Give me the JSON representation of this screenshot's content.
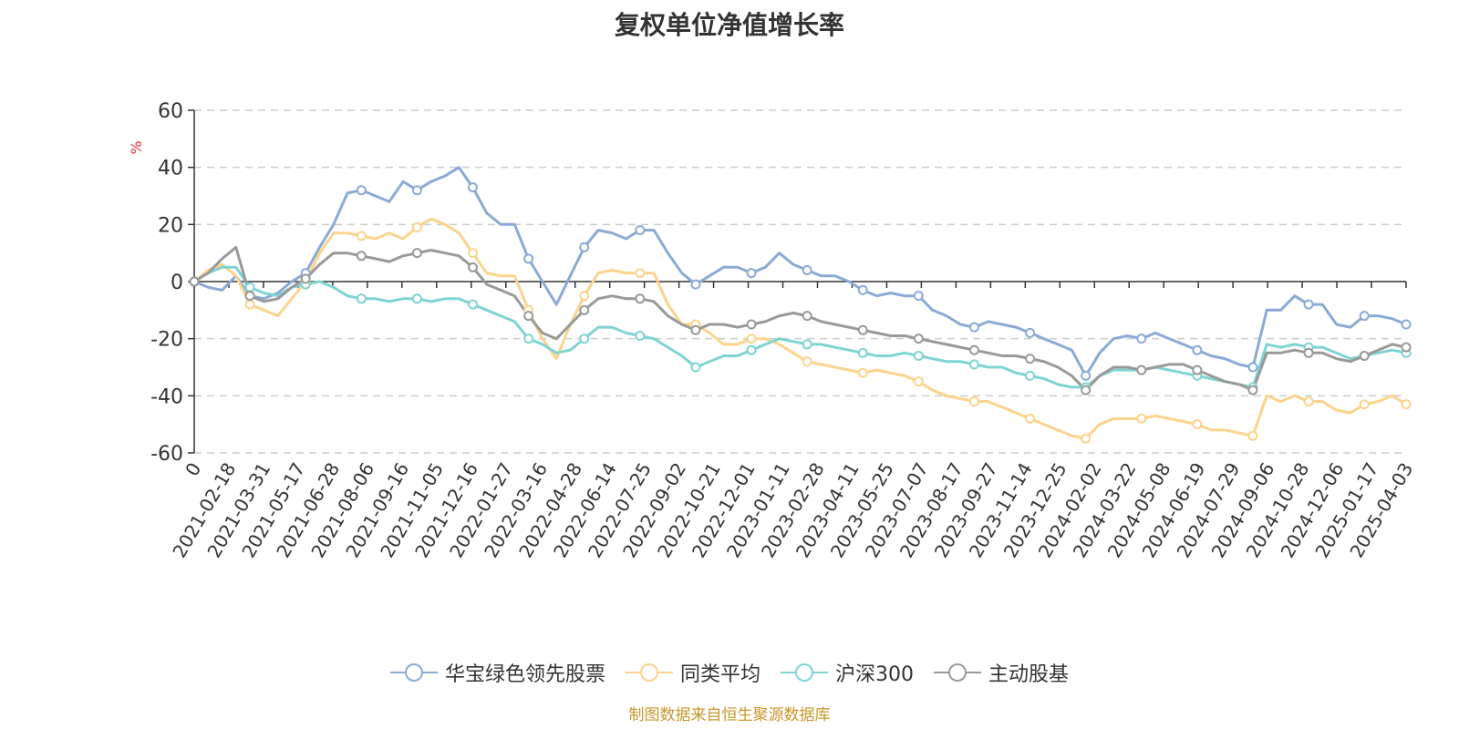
{
  "chart_data": {
    "type": "line",
    "title": "复权单位净值增长率",
    "ylabel": "%",
    "ylim": [
      -60,
      60
    ],
    "yticks": [
      60,
      40,
      20,
      0,
      -20,
      -40,
      -60
    ],
    "grid": true,
    "legend_position": "bottom",
    "x_tick_labels": [
      "0",
      "2021-02-18",
      "2021-03-31",
      "2021-05-17",
      "2021-06-28",
      "2021-08-06",
      "2021-09-16",
      "2021-11-05",
      "2021-12-16",
      "2022-01-27",
      "2022-03-16",
      "2022-04-28",
      "2022-06-14",
      "2022-07-25",
      "2022-09-02",
      "2022-10-21",
      "2022-12-01",
      "2023-01-11",
      "2023-02-28",
      "2023-04-11",
      "2023-05-25",
      "2023-07-07",
      "2023-08-17",
      "2023-09-27",
      "2023-11-14",
      "2023-12-25",
      "2024-02-02",
      "2024-03-22",
      "2024-05-08",
      "2024-06-19",
      "2024-07-29",
      "2024-09-06",
      "2024-10-28",
      "2024-12-06",
      "2025-01-17",
      "2025-04-03"
    ],
    "series": [
      {
        "name": "华宝绿色领先股票",
        "color": "#8aaad6",
        "values": [
          0,
          -2,
          -3,
          2,
          -5,
          -6,
          -4,
          0,
          3,
          12,
          20,
          31,
          32,
          30,
          28,
          35,
          32,
          35,
          37,
          40,
          33,
          24,
          20,
          20,
          8,
          0,
          -8,
          2,
          12,
          18,
          17,
          15,
          18,
          18,
          10,
          3,
          -1,
          2,
          5,
          5,
          3,
          5,
          10,
          6,
          4,
          2,
          2,
          0,
          -3,
          -5,
          -4,
          -5,
          -5,
          -10,
          -12,
          -15,
          -16,
          -14,
          -15,
          -16,
          -18,
          -20,
          -22,
          -24,
          -33,
          -25,
          -20,
          -19,
          -20,
          -18,
          -20,
          -22,
          -24,
          -26,
          -27,
          -29,
          -30,
          -10,
          -10,
          -5,
          -8,
          -8,
          -15,
          -16,
          -12,
          -12,
          -13,
          -15
        ]
      },
      {
        "name": "同类平均",
        "color": "#fbd38c",
        "values": [
          0,
          4,
          6,
          2,
          -8,
          -10,
          -12,
          -6,
          0,
          10,
          17,
          17,
          16,
          15,
          17,
          15,
          19,
          22,
          20,
          17,
          10,
          3,
          2,
          2,
          -10,
          -20,
          -27,
          -15,
          -5,
          3,
          4,
          3,
          3,
          3,
          -8,
          -15,
          -15,
          -18,
          -22,
          -22,
          -20,
          -20,
          -22,
          -25,
          -28,
          -29,
          -30,
          -31,
          -32,
          -31,
          -32,
          -33,
          -35,
          -38,
          -40,
          -41,
          -42,
          -42,
          -44,
          -46,
          -48,
          -50,
          -52,
          -54,
          -55,
          -50,
          -48,
          -48,
          -48,
          -47,
          -48,
          -49,
          -50,
          -52,
          -52,
          -53,
          -54,
          -40,
          -42,
          -40,
          -42,
          -42,
          -45,
          -46,
          -43,
          -42,
          -40,
          -43
        ]
      },
      {
        "name": "沪深300",
        "color": "#7fd3d3",
        "values": [
          0,
          3,
          5,
          5,
          -2,
          -4,
          -5,
          -2,
          -1,
          0,
          -2,
          -5,
          -6,
          -6,
          -7,
          -6,
          -6,
          -7,
          -6,
          -6,
          -8,
          -10,
          -12,
          -14,
          -20,
          -22,
          -25,
          -24,
          -20,
          -16,
          -16,
          -18,
          -19,
          -20,
          -23,
          -26,
          -30,
          -28,
          -26,
          -26,
          -24,
          -22,
          -20,
          -21,
          -22,
          -22,
          -23,
          -24,
          -25,
          -26,
          -26,
          -25,
          -26,
          -27,
          -28,
          -28,
          -29,
          -30,
          -30,
          -32,
          -33,
          -34,
          -36,
          -37,
          -37,
          -33,
          -31,
          -31,
          -31,
          -30,
          -31,
          -32,
          -33,
          -34,
          -35,
          -36,
          -37,
          -22,
          -23,
          -22,
          -23,
          -23,
          -25,
          -27,
          -26,
          -25,
          -24,
          -25
        ]
      },
      {
        "name": "主动股基",
        "color": "#999999",
        "values": [
          0,
          3,
          8,
          12,
          -5,
          -7,
          -6,
          -2,
          1,
          6,
          10,
          10,
          9,
          8,
          7,
          9,
          10,
          11,
          10,
          9,
          5,
          -1,
          -3,
          -5,
          -12,
          -18,
          -20,
          -15,
          -10,
          -6,
          -5,
          -6,
          -6,
          -7,
          -12,
          -15,
          -17,
          -15,
          -15,
          -16,
          -15,
          -14,
          -12,
          -11,
          -12,
          -14,
          -15,
          -16,
          -17,
          -18,
          -19,
          -19,
          -20,
          -21,
          -22,
          -23,
          -24,
          -25,
          -26,
          -26,
          -27,
          -28,
          -30,
          -33,
          -38,
          -33,
          -30,
          -30,
          -31,
          -30,
          -29,
          -29,
          -31,
          -33,
          -35,
          -36,
          -38,
          -25,
          -25,
          -24,
          -25,
          -25,
          -27,
          -28,
          -26,
          -24,
          -22,
          -23
        ]
      }
    ]
  },
  "source_note": "制图数据来自恒生聚源数据库"
}
